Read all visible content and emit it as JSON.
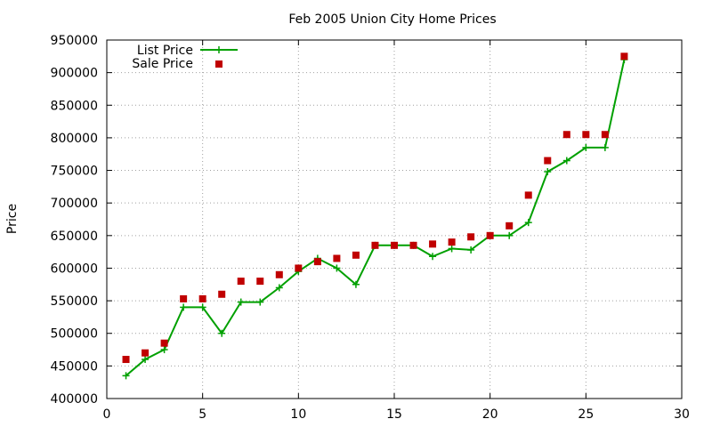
{
  "chart_data": {
    "type": "line",
    "title": "Feb 2005 Union City Home Prices",
    "xlabel": "",
    "ylabel": "Price",
    "xlim": [
      0,
      30
    ],
    "ylim": [
      400000,
      950000
    ],
    "x_ticks": [
      0,
      5,
      10,
      15,
      20,
      25,
      30
    ],
    "y_ticks": [
      400000,
      450000,
      500000,
      550000,
      600000,
      650000,
      700000,
      750000,
      800000,
      850000,
      900000,
      950000
    ],
    "grid": true,
    "legend_position": "top-left",
    "series": [
      {
        "name": "List Price",
        "style": "line+cross",
        "color": "#00a000",
        "x": [
          1,
          2,
          3,
          4,
          5,
          6,
          7,
          8,
          9,
          10,
          11,
          12,
          13,
          14,
          15,
          16,
          17,
          18,
          19,
          20,
          21,
          22,
          23,
          24,
          25,
          26,
          27
        ],
        "values": [
          435000,
          460000,
          475000,
          540000,
          540000,
          500000,
          548000,
          548000,
          570000,
          595000,
          615000,
          600000,
          575000,
          635000,
          635000,
          635000,
          618000,
          630000,
          628000,
          650000,
          650000,
          670000,
          748000,
          765000,
          785000,
          785000,
          920000
        ]
      },
      {
        "name": "Sale Price",
        "style": "square",
        "color": "#c00000",
        "x": [
          1,
          2,
          3,
          4,
          5,
          6,
          7,
          8,
          9,
          10,
          11,
          12,
          13,
          14,
          15,
          16,
          17,
          18,
          19,
          20,
          21,
          22,
          23,
          24,
          25,
          26,
          27
        ],
        "values": [
          460000,
          470000,
          485000,
          553000,
          553000,
          560000,
          580000,
          580000,
          590000,
          600000,
          610000,
          615000,
          620000,
          635000,
          635000,
          635000,
          637000,
          640000,
          648000,
          650000,
          665000,
          712000,
          765000,
          805000,
          805000,
          805000,
          925000
        ]
      }
    ]
  }
}
